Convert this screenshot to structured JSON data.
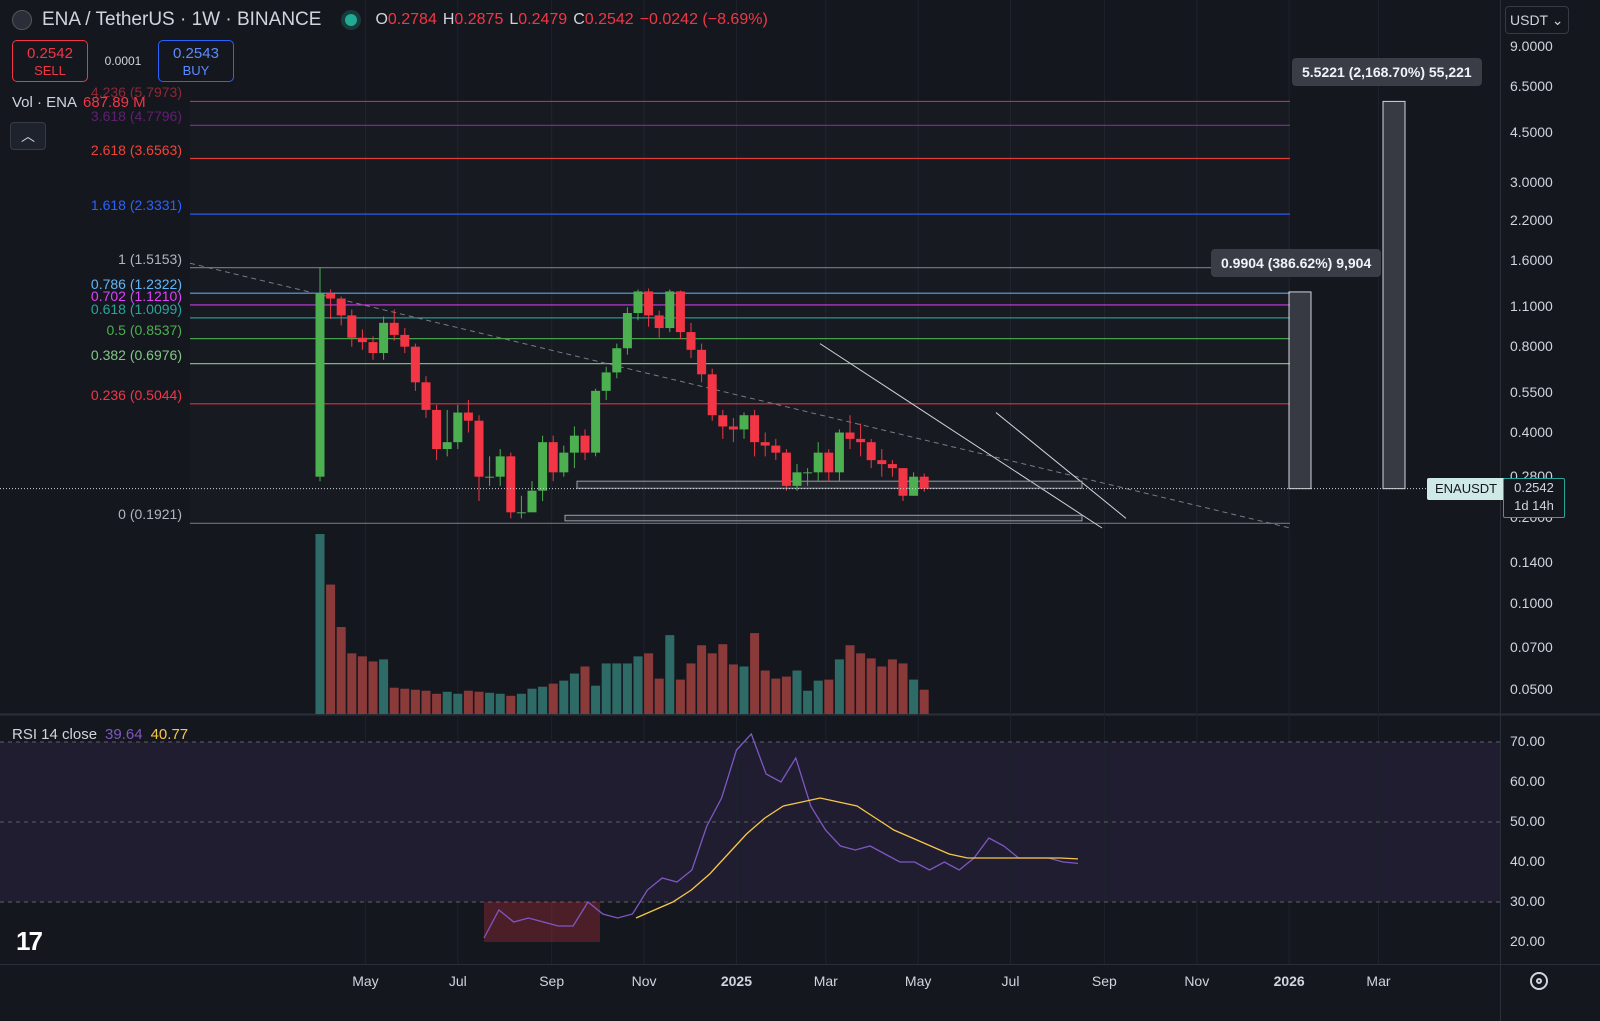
{
  "header": {
    "symbol": "ENA / TetherUS · 1W · BINANCE",
    "ohlc": [
      {
        "k": "O",
        "v": "0.2784"
      },
      {
        "k": "H",
        "v": "0.2875"
      },
      {
        "k": "L",
        "v": "0.2479"
      },
      {
        "k": "C",
        "v": "0.2542"
      }
    ],
    "change": "−0.0242 (−8.69%)"
  },
  "trade": {
    "sell_price": "0.2542",
    "sell_label": "SELL",
    "spread": "0.0001",
    "buy_price": "0.2543",
    "buy_label": "BUY"
  },
  "volume_legend": {
    "label": "Vol · ENA",
    "value": "687.89 M"
  },
  "rsi_legend": {
    "label": "RSI 14 close",
    "rsi": "39.64",
    "ma": "40.77"
  },
  "currency": "USDT ⌄",
  "price_tag": {
    "symbol": "ENAUSDT",
    "price": "0.2542",
    "countdown": "1d 14h"
  },
  "measures": [
    {
      "text": "5.5221 (2,168.70%) 55,221"
    },
    {
      "text": "0.9904 (386.62%) 9,904"
    }
  ],
  "fib_levels": [
    {
      "label": "4.236 (5.7973)",
      "price": 5.7973,
      "color": "#f23645",
      "faded": true
    },
    {
      "label": "3.618 (4.7796)",
      "price": 4.7796,
      "color": "#9c27b0",
      "faded": true
    },
    {
      "label": "2.618 (3.6563)",
      "price": 3.6563,
      "color": "#f44336",
      "faded": false
    },
    {
      "label": "1.618 (2.3331)",
      "price": 2.3331,
      "color": "#2962ff",
      "faded": false
    },
    {
      "label": "1 (1.5153)",
      "price": 1.5153,
      "color": "#787b86",
      "faded": false
    },
    {
      "label": "0.786 (1.2322)",
      "price": 1.2322,
      "color": "#64b5f6",
      "faded": false
    },
    {
      "label": "0.702 (1.1210)",
      "price": 1.121,
      "color": "#e040fb",
      "faded": false
    },
    {
      "label": "0.618 (1.0099)",
      "price": 1.0099,
      "color": "#26a69a",
      "faded": false
    },
    {
      "label": "0.5 (0.8537)",
      "price": 0.8537,
      "color": "#4caf50",
      "faded": false
    },
    {
      "label": "0.382 (0.6976)",
      "price": 0.6976,
      "color": "#81c784",
      "faded": false
    },
    {
      "label": "0.236 (0.5044)",
      "price": 0.5044,
      "color": "#f23645",
      "faded": false
    },
    {
      "label": "0 (0.1921)",
      "price": 0.1921,
      "color": "#787b86",
      "faded": false
    }
  ],
  "price_axis": [
    "9.0000",
    "6.5000",
    "4.5000",
    "3.0000",
    "2.2000",
    "1.6000",
    "1.1000",
    "0.8000",
    "0.5500",
    "0.4000",
    "0.2800",
    "0.2000",
    "0.1400",
    "0.1000",
    "0.0700",
    "0.0500"
  ],
  "rsi_axis": [
    "70.00",
    "60.00",
    "50.00",
    "40.00",
    "30.00",
    "20.00"
  ],
  "time_axis": [
    {
      "label": "May",
      "date": "2024-05"
    },
    {
      "label": "Jul",
      "date": "2024-07"
    },
    {
      "label": "Sep",
      "date": "2024-09"
    },
    {
      "label": "Nov",
      "date": "2024-11"
    },
    {
      "label": "2025",
      "date": "2025-01"
    },
    {
      "label": "Mar",
      "date": "2025-03"
    },
    {
      "label": "May",
      "date": "2025-05"
    },
    {
      "label": "Jul",
      "date": "2025-07"
    },
    {
      "label": "Sep",
      "date": "2025-09"
    },
    {
      "label": "Nov",
      "date": "2025-11"
    },
    {
      "label": "2026",
      "date": "2026-01"
    },
    {
      "label": "Mar",
      "date": "2026-03"
    }
  ],
  "colors": {
    "up": "#4caf50",
    "down": "#f23645",
    "vol_up": "#2e6b66",
    "vol_down": "#8b3a3a",
    "rsi": "#7e57c2",
    "rsi_ma": "#f7c74a",
    "bg": "#15171f"
  },
  "chart_data": {
    "type": "candlestick",
    "interval": "1W",
    "start_week": "2024-04-01",
    "scale": "log",
    "candles": [
      [
        0.28,
        1.23,
        1.52,
        0.27
      ],
      [
        1.23,
        1.18,
        1.27,
        1.0
      ],
      [
        1.18,
        1.03,
        1.2,
        0.95
      ],
      [
        1.03,
        0.86,
        1.08,
        0.8
      ],
      [
        0.86,
        0.83,
        0.92,
        0.78
      ],
      [
        0.83,
        0.76,
        0.87,
        0.72
      ],
      [
        0.76,
        0.97,
        1.02,
        0.72
      ],
      [
        0.97,
        0.88,
        1.08,
        0.84
      ],
      [
        0.88,
        0.8,
        0.93,
        0.76
      ],
      [
        0.8,
        0.6,
        0.82,
        0.56
      ],
      [
        0.6,
        0.48,
        0.63,
        0.45
      ],
      [
        0.48,
        0.35,
        0.5,
        0.32
      ],
      [
        0.35,
        0.37,
        0.48,
        0.33
      ],
      [
        0.37,
        0.47,
        0.5,
        0.35
      ],
      [
        0.47,
        0.44,
        0.52,
        0.4
      ],
      [
        0.44,
        0.28,
        0.46,
        0.23
      ],
      [
        0.28,
        0.28,
        0.33,
        0.26
      ],
      [
        0.28,
        0.33,
        0.35,
        0.26
      ],
      [
        0.33,
        0.21,
        0.34,
        0.2
      ],
      [
        0.21,
        0.21,
        0.24,
        0.2
      ],
      [
        0.21,
        0.25,
        0.27,
        0.21
      ],
      [
        0.25,
        0.37,
        0.39,
        0.23
      ],
      [
        0.37,
        0.29,
        0.39,
        0.27
      ],
      [
        0.29,
        0.34,
        0.36,
        0.28
      ],
      [
        0.34,
        0.39,
        0.42,
        0.3
      ],
      [
        0.39,
        0.34,
        0.41,
        0.32
      ],
      [
        0.34,
        0.56,
        0.57,
        0.33
      ],
      [
        0.56,
        0.65,
        0.68,
        0.52
      ],
      [
        0.65,
        0.79,
        0.82,
        0.62
      ],
      [
        0.79,
        1.05,
        1.1,
        0.75
      ],
      [
        1.05,
        1.25,
        1.27,
        0.99
      ],
      [
        1.25,
        1.03,
        1.28,
        0.94
      ],
      [
        1.03,
        0.93,
        1.07,
        0.86
      ],
      [
        0.93,
        1.25,
        1.27,
        0.9
      ],
      [
        1.25,
        0.9,
        1.26,
        0.85
      ],
      [
        0.9,
        0.78,
        0.97,
        0.73
      ],
      [
        0.78,
        0.64,
        0.82,
        0.6
      ],
      [
        0.64,
        0.46,
        0.67,
        0.44
      ],
      [
        0.46,
        0.42,
        0.48,
        0.38
      ],
      [
        0.42,
        0.41,
        0.45,
        0.37
      ],
      [
        0.41,
        0.46,
        0.47,
        0.38
      ],
      [
        0.46,
        0.37,
        0.48,
        0.33
      ],
      [
        0.37,
        0.36,
        0.4,
        0.33
      ],
      [
        0.36,
        0.34,
        0.38,
        0.32
      ],
      [
        0.34,
        0.26,
        0.35,
        0.25
      ],
      [
        0.26,
        0.29,
        0.31,
        0.25
      ],
      [
        0.29,
        0.29,
        0.3,
        0.26
      ],
      [
        0.29,
        0.34,
        0.37,
        0.27
      ],
      [
        0.34,
        0.29,
        0.35,
        0.27
      ],
      [
        0.29,
        0.4,
        0.41,
        0.27
      ],
      [
        0.4,
        0.38,
        0.46,
        0.35
      ],
      [
        0.38,
        0.37,
        0.43,
        0.33
      ],
      [
        0.37,
        0.32,
        0.38,
        0.3
      ],
      [
        0.32,
        0.31,
        0.35,
        0.28
      ],
      [
        0.31,
        0.3,
        0.32,
        0.28
      ],
      [
        0.3,
        0.24,
        0.3,
        0.23
      ],
      [
        0.24,
        0.28,
        0.29,
        0.24
      ],
      [
        0.28,
        0.2542,
        0.2875,
        0.2479
      ]
    ],
    "volume": [
      178,
      128,
      86,
      60,
      57,
      52,
      54,
      26,
      25,
      24,
      23,
      20,
      22,
      20,
      23,
      22,
      21,
      20,
      18,
      20,
      25,
      27,
      30,
      33,
      40,
      47,
      28,
      50,
      50,
      50,
      57,
      60,
      35,
      78,
      34,
      50,
      68,
      60,
      69,
      49,
      47,
      80,
      43,
      35,
      37,
      43,
      23,
      33,
      34,
      54,
      68,
      60,
      55,
      47,
      54,
      50,
      34,
      24
    ],
    "rsi": [
      21,
      28,
      25,
      26,
      25,
      24,
      24,
      30,
      27,
      26,
      27,
      33,
      36,
      35,
      38,
      49,
      56,
      68,
      72,
      62,
      60,
      66,
      54,
      48,
      44,
      43,
      44,
      42,
      40,
      40,
      38,
      40,
      38,
      41,
      46,
      44,
      41,
      41,
      41,
      40,
      39.64
    ],
    "rsi_ma": [
      26,
      28,
      30,
      33,
      37,
      42,
      47,
      51,
      54,
      55,
      56,
      55,
      54,
      51,
      48,
      46,
      44,
      42,
      41,
      41,
      41,
      41,
      41,
      41,
      40.77
    ],
    "ylim": [
      0.045,
      9.0
    ],
    "rsi_ylim": [
      18,
      75
    ],
    "current_price": 0.2542
  }
}
